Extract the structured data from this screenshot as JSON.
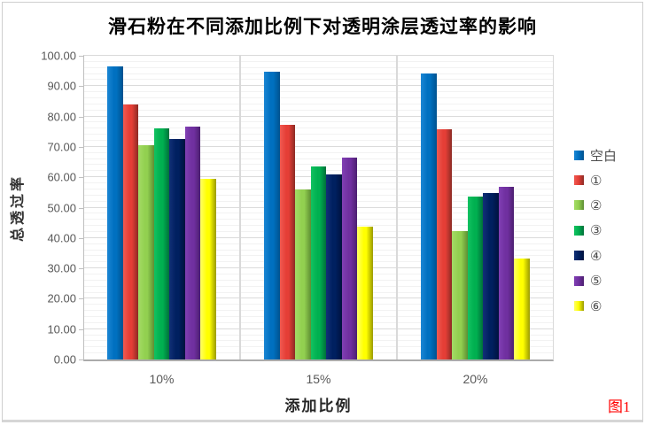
{
  "figure_label": "图1",
  "chart_data": {
    "type": "bar",
    "title": "滑石粉在不同添加比例下对透明涂层透过率的影响",
    "xlabel": "添加比例",
    "ylabel": "总透过率",
    "categories": [
      "10%",
      "15%",
      "20%"
    ],
    "series": [
      {
        "name": "空白",
        "color": "#0070C0",
        "light": "#1B86D4",
        "dark": "#00528F",
        "values": [
          96.5,
          94.9,
          94.3
        ]
      },
      {
        "name": "①",
        "color": "#E53E36",
        "light": "#EF5A52",
        "dark": "#8C2B24",
        "values": [
          84.1,
          77.4,
          75.7
        ]
      },
      {
        "name": "②",
        "color": "#92D050",
        "light": "#A4DB66",
        "dark": "#5E8E33",
        "values": [
          70.6,
          56.1,
          42.2
        ]
      },
      {
        "name": "③",
        "color": "#00B050",
        "light": "#12C261",
        "dark": "#00703A",
        "values": [
          76.1,
          63.5,
          53.7
        ]
      },
      {
        "name": "④",
        "color": "#002060",
        "light": "#123077",
        "dark": "#00123E",
        "values": [
          72.7,
          61.0,
          54.9
        ]
      },
      {
        "name": "⑤",
        "color": "#7030A0",
        "light": "#8140B4",
        "dark": "#4C1F70",
        "values": [
          76.8,
          66.4,
          57.0
        ]
      },
      {
        "name": "⑥",
        "color": "#FFFF00",
        "light": "#FFFF66",
        "dark": "#9A9A00",
        "values": [
          59.4,
          43.7,
          33.2
        ]
      }
    ],
    "ylim": [
      0,
      100
    ],
    "ytick_step": 10,
    "yminor_step": 2,
    "ytick_decimals": 2,
    "grid": true,
    "legend_position": "right",
    "colors": {
      "major_gridline": "#dbdbdb",
      "minor_gridline": "#f2f2f2",
      "axis_line": "#ababab",
      "tick_text": "#595959",
      "figure_label_color": "#ff0000"
    }
  }
}
